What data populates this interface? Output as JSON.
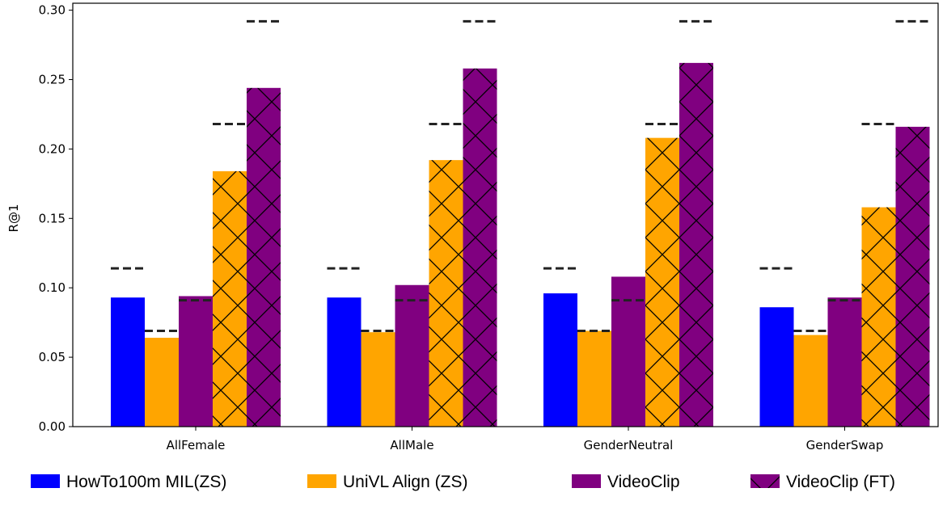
{
  "chart_data": {
    "type": "bar",
    "title": "",
    "xlabel": "",
    "ylabel": "R@1",
    "ylim": [
      0,
      0.305
    ],
    "yticks": [
      "0.00",
      "0.05",
      "0.10",
      "0.15",
      "0.20",
      "0.25",
      "0.30"
    ],
    "categories": [
      "AllFemale",
      "AllMale",
      "GenderNeutral",
      "GenderSwap"
    ],
    "grid": false,
    "legend_position": "bottom",
    "series": [
      {
        "name": "HowTo100m MIL(ZS)",
        "color": "#0000ff",
        "hatch": false,
        "values": [
          0.093,
          0.093,
          0.096,
          0.086
        ],
        "reference": [
          0.114,
          0.114,
          0.114,
          0.114
        ]
      },
      {
        "name": "UniVL Align (ZS)",
        "color": "#ffa500",
        "hatch": false,
        "values": [
          0.064,
          0.068,
          0.069,
          0.066
        ],
        "reference": [
          0.069,
          0.069,
          0.069,
          0.069
        ]
      },
      {
        "name": "VideoClip",
        "color": "#800080",
        "hatch": false,
        "values": [
          0.094,
          0.102,
          0.108,
          0.093
        ],
        "reference": [
          0.091,
          0.091,
          0.091,
          0.091
        ]
      },
      {
        "name": "",
        "color": "#ffa500",
        "hatch": true,
        "values": [
          0.184,
          0.192,
          0.208,
          0.158
        ],
        "reference": [
          0.218,
          0.218,
          0.218,
          0.218
        ]
      },
      {
        "name": "VideoClip (FT)",
        "color": "#800080",
        "hatch": true,
        "values": [
          0.244,
          0.258,
          0.262,
          0.216
        ],
        "reference": [
          0.292,
          0.292,
          0.292,
          0.292
        ]
      }
    ]
  }
}
